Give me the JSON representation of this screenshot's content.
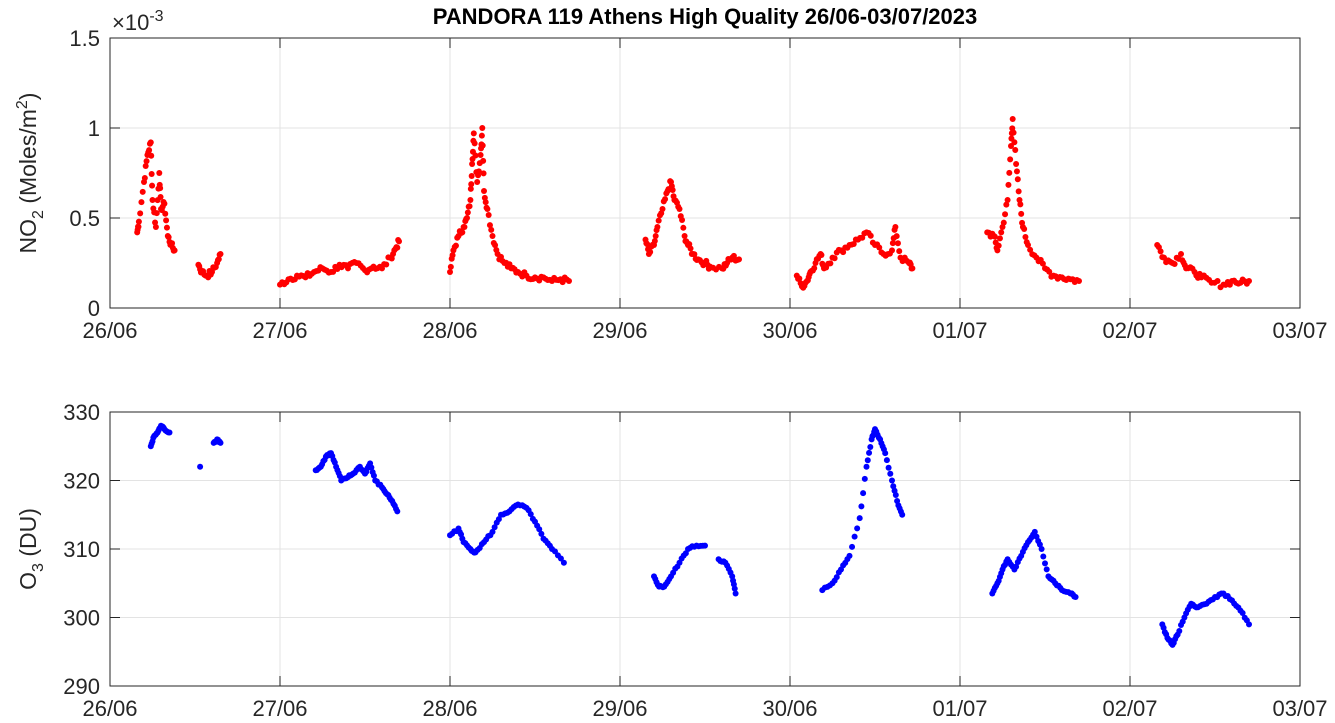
{
  "chart_data": [
    {
      "type": "scatter",
      "title": "PANDORA 119 Athens High Quality 26/06-03/07/2023",
      "ylabel_main": "NO",
      "ylabel_sub": "2",
      "ylabel_rest": " (Moles/m",
      "ylabel_sup": "2",
      "ylabel_end": ")",
      "exponent_label": "×10",
      "exponent_value": "-3",
      "x_unit": "days since 26/06/2023",
      "xlim": [
        0,
        7
      ],
      "xticks": [
        "26/06",
        "27/06",
        "28/06",
        "29/06",
        "30/06",
        "01/07",
        "02/07",
        "03/07"
      ],
      "ylim": [
        0,
        1.5
      ],
      "yticks": [
        0,
        0.5,
        1,
        1.5
      ],
      "ytick_labels": [
        "0",
        "0.5",
        "1",
        "1.5"
      ],
      "y_scale_note": "values ×10^-3 Moles/m2",
      "grid": true,
      "color": "#ff0000",
      "points": [
        [
          0.16,
          0.42
        ],
        [
          0.17,
          0.48
        ],
        [
          0.2,
          0.7
        ],
        [
          0.22,
          0.85
        ],
        [
          0.24,
          0.92
        ],
        [
          0.25,
          0.6
        ],
        [
          0.27,
          0.45
        ],
        [
          0.29,
          0.75
        ],
        [
          0.3,
          0.55
        ],
        [
          0.32,
          0.58
        ],
        [
          0.34,
          0.4
        ],
        [
          0.36,
          0.35
        ],
        [
          0.38,
          0.32
        ],
        [
          0.52,
          0.24
        ],
        [
          0.54,
          0.2
        ],
        [
          0.57,
          0.18
        ],
        [
          0.6,
          0.2
        ],
        [
          0.63,
          0.25
        ],
        [
          0.65,
          0.3
        ],
        [
          1.0,
          0.13
        ],
        [
          1.05,
          0.16
        ],
        [
          1.1,
          0.18
        ],
        [
          1.15,
          0.17
        ],
        [
          1.2,
          0.2
        ],
        [
          1.25,
          0.22
        ],
        [
          1.3,
          0.2
        ],
        [
          1.35,
          0.24
        ],
        [
          1.4,
          0.22
        ],
        [
          1.45,
          0.25
        ],
        [
          1.5,
          0.21
        ],
        [
          1.55,
          0.23
        ],
        [
          1.6,
          0.22
        ],
        [
          1.65,
          0.28
        ],
        [
          1.68,
          0.33
        ],
        [
          1.7,
          0.37
        ],
        [
          2.0,
          0.2
        ],
        [
          2.02,
          0.32
        ],
        [
          2.05,
          0.4
        ],
        [
          2.08,
          0.45
        ],
        [
          2.1,
          0.5
        ],
        [
          2.12,
          0.6
        ],
        [
          2.13,
          0.8
        ],
        [
          2.14,
          0.97
        ],
        [
          2.16,
          0.7
        ],
        [
          2.18,
          0.85
        ],
        [
          2.19,
          1.0
        ],
        [
          2.2,
          0.65
        ],
        [
          2.22,
          0.55
        ],
        [
          2.25,
          0.4
        ],
        [
          2.28,
          0.3
        ],
        [
          2.32,
          0.25
        ],
        [
          2.36,
          0.22
        ],
        [
          2.4,
          0.2
        ],
        [
          2.45,
          0.18
        ],
        [
          2.5,
          0.17
        ],
        [
          2.55,
          0.17
        ],
        [
          2.6,
          0.15
        ],
        [
          2.65,
          0.16
        ],
        [
          2.7,
          0.15
        ],
        [
          3.15,
          0.38
        ],
        [
          3.17,
          0.3
        ],
        [
          3.2,
          0.35
        ],
        [
          3.22,
          0.45
        ],
        [
          3.25,
          0.55
        ],
        [
          3.28,
          0.65
        ],
        [
          3.3,
          0.7
        ],
        [
          3.32,
          0.6
        ],
        [
          3.35,
          0.55
        ],
        [
          3.38,
          0.4
        ],
        [
          3.4,
          0.35
        ],
        [
          3.43,
          0.3
        ],
        [
          3.46,
          0.27
        ],
        [
          3.5,
          0.25
        ],
        [
          3.53,
          0.23
        ],
        [
          3.6,
          0.22
        ],
        [
          3.63,
          0.25
        ],
        [
          3.66,
          0.28
        ],
        [
          3.7,
          0.27
        ],
        [
          4.04,
          0.18
        ],
        [
          4.07,
          0.12
        ],
        [
          4.1,
          0.15
        ],
        [
          4.12,
          0.2
        ],
        [
          4.15,
          0.25
        ],
        [
          4.18,
          0.3
        ],
        [
          4.2,
          0.22
        ],
        [
          4.25,
          0.28
        ],
        [
          4.3,
          0.32
        ],
        [
          4.35,
          0.35
        ],
        [
          4.4,
          0.38
        ],
        [
          4.45,
          0.42
        ],
        [
          4.5,
          0.35
        ],
        [
          4.55,
          0.3
        ],
        [
          4.6,
          0.32
        ],
        [
          4.62,
          0.45
        ],
        [
          4.65,
          0.28
        ],
        [
          4.7,
          0.25
        ],
        [
          4.72,
          0.22
        ],
        [
          5.16,
          0.42
        ],
        [
          5.2,
          0.4
        ],
        [
          5.22,
          0.32
        ],
        [
          5.25,
          0.45
        ],
        [
          5.28,
          0.6
        ],
        [
          5.3,
          0.9
        ],
        [
          5.31,
          1.05
        ],
        [
          5.33,
          0.8
        ],
        [
          5.35,
          0.6
        ],
        [
          5.37,
          0.45
        ],
        [
          5.4,
          0.35
        ],
        [
          5.45,
          0.28
        ],
        [
          5.5,
          0.22
        ],
        [
          5.55,
          0.18
        ],
        [
          5.6,
          0.17
        ],
        [
          5.65,
          0.16
        ],
        [
          5.7,
          0.15
        ],
        [
          6.16,
          0.35
        ],
        [
          6.2,
          0.28
        ],
        [
          6.25,
          0.25
        ],
        [
          6.3,
          0.3
        ],
        [
          6.33,
          0.22
        ],
        [
          6.38,
          0.2
        ],
        [
          6.42,
          0.17
        ],
        [
          6.48,
          0.14
        ],
        [
          6.55,
          0.13
        ],
        [
          6.6,
          0.15
        ],
        [
          6.65,
          0.14
        ],
        [
          6.7,
          0.15
        ]
      ]
    },
    {
      "type": "scatter",
      "ylabel_main": "O",
      "ylabel_sub": "3",
      "ylabel_rest": " (DU)",
      "x_unit": "days since 26/06/2023",
      "xlim": [
        0,
        7
      ],
      "xticks": [
        "26/06",
        "27/06",
        "28/06",
        "29/06",
        "30/06",
        "01/07",
        "02/07",
        "03/07"
      ],
      "ylim": [
        290,
        330
      ],
      "yticks": [
        290,
        300,
        310,
        320,
        330
      ],
      "ytick_labels": [
        "290",
        "300",
        "310",
        "320",
        "330"
      ],
      "grid": true,
      "color": "#0000ff",
      "points": [
        [
          0.24,
          325
        ],
        [
          0.26,
          326.5
        ],
        [
          0.28,
          327
        ],
        [
          0.3,
          328
        ],
        [
          0.32,
          327.5
        ],
        [
          0.35,
          327
        ],
        [
          0.53,
          322
        ],
        [
          0.61,
          325.5
        ],
        [
          0.63,
          326
        ],
        [
          0.65,
          325.5
        ],
        [
          1.21,
          321.5
        ],
        [
          1.24,
          322
        ],
        [
          1.27,
          323.5
        ],
        [
          1.3,
          324
        ],
        [
          1.33,
          322
        ],
        [
          1.36,
          320
        ],
        [
          1.4,
          320.5
        ],
        [
          1.43,
          321
        ],
        [
          1.47,
          322
        ],
        [
          1.5,
          321
        ],
        [
          1.53,
          322.5
        ],
        [
          1.56,
          320
        ],
        [
          1.6,
          319
        ],
        [
          1.63,
          318
        ],
        [
          1.66,
          317
        ],
        [
          1.69,
          315.5
        ],
        [
          2.0,
          312
        ],
        [
          2.05,
          313
        ],
        [
          2.08,
          311
        ],
        [
          2.12,
          310
        ],
        [
          2.15,
          309.5
        ],
        [
          2.2,
          311
        ],
        [
          2.25,
          312.5
        ],
        [
          2.3,
          315
        ],
        [
          2.35,
          315.5
        ],
        [
          2.4,
          316.5
        ],
        [
          2.45,
          316
        ],
        [
          2.5,
          314
        ],
        [
          2.55,
          311.5
        ],
        [
          2.6,
          310
        ],
        [
          2.67,
          308
        ],
        [
          3.2,
          306
        ],
        [
          3.23,
          304.5
        ],
        [
          3.26,
          304.5
        ],
        [
          3.3,
          306
        ],
        [
          3.35,
          308
        ],
        [
          3.4,
          310
        ],
        [
          3.45,
          310.5
        ],
        [
          3.5,
          310.5
        ],
        [
          3.58,
          308.5
        ],
        [
          3.62,
          308
        ],
        [
          3.66,
          306
        ],
        [
          3.68,
          303.5
        ],
        [
          4.19,
          304
        ],
        [
          4.25,
          305
        ],
        [
          4.3,
          307
        ],
        [
          4.35,
          309
        ],
        [
          4.41,
          314.5
        ],
        [
          4.45,
          322
        ],
        [
          4.48,
          326
        ],
        [
          4.5,
          327.5
        ],
        [
          4.53,
          326
        ],
        [
          4.56,
          324
        ],
        [
          4.6,
          320
        ],
        [
          4.63,
          317
        ],
        [
          4.66,
          315
        ],
        [
          5.19,
          303.5
        ],
        [
          5.22,
          305
        ],
        [
          5.25,
          307
        ],
        [
          5.28,
          308.5
        ],
        [
          5.32,
          307
        ],
        [
          5.36,
          309
        ],
        [
          5.4,
          311
        ],
        [
          5.44,
          312.5
        ],
        [
          5.48,
          310
        ],
        [
          5.52,
          306
        ],
        [
          5.56,
          305
        ],
        [
          5.6,
          304
        ],
        [
          5.65,
          303.5
        ],
        [
          5.68,
          303
        ],
        [
          6.19,
          299
        ],
        [
          6.22,
          297
        ],
        [
          6.25,
          296
        ],
        [
          6.28,
          297.5
        ],
        [
          6.32,
          300
        ],
        [
          6.36,
          302
        ],
        [
          6.4,
          301.5
        ],
        [
          6.45,
          302
        ],
        [
          6.5,
          303
        ],
        [
          6.55,
          303.5
        ],
        [
          6.6,
          302.5
        ],
        [
          6.65,
          301
        ],
        [
          6.7,
          299
        ]
      ]
    }
  ]
}
